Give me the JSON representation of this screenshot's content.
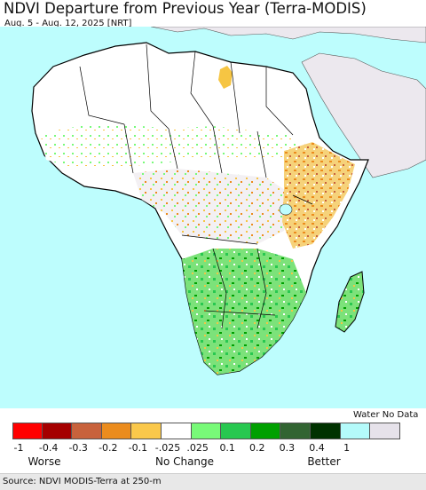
{
  "header": {
    "title": "NDVI Departure from Previous Year (Terra-MODIS)",
    "subtitle": "Aug. 5 - Aug. 12, 2025 [NRT]"
  },
  "map": {
    "colors": {
      "water": "#bdfdfd",
      "land_no_change": "#ffffff",
      "outside_region": "#ece8ee",
      "border": "#000000",
      "no_data": "#e0dce3",
      "sahara_anomaly": "#f6c543"
    }
  },
  "legend": {
    "water_no_data_label": "Water No Data",
    "swatches": [
      {
        "name": "minus-1-to-minus-0.4",
        "color": "#ff0000"
      },
      {
        "name": "minus-0.4-to-minus-0.3",
        "color": "#a50000"
      },
      {
        "name": "minus-0.3-to-minus-0.2",
        "color": "#c8623c"
      },
      {
        "name": "minus-0.2-to-minus-0.1",
        "color": "#eb8c1e"
      },
      {
        "name": "minus-0.1-to-minus-0.025",
        "color": "#fac84b"
      },
      {
        "name": "no-change",
        "color": "#ffffff"
      },
      {
        "name": "0.025-to-0.1",
        "color": "#78fa78"
      },
      {
        "name": "0.1-to-0.2",
        "color": "#28c850"
      },
      {
        "name": "0.2-to-0.3",
        "color": "#00a000"
      },
      {
        "name": "0.3-to-0.4",
        "color": "#326432"
      },
      {
        "name": "0.4-to-1",
        "color": "#003200"
      },
      {
        "name": "water",
        "color": "#b4fafa"
      },
      {
        "name": "no-data",
        "color": "#e6e2ea"
      }
    ],
    "ticks": [
      "-1",
      "-0.4",
      "-0.3",
      "-0.2",
      "-0.1",
      "-.025",
      ".025",
      "0.1",
      "0.2",
      "0.3",
      "0.4",
      "1"
    ],
    "categories": {
      "worse": "Worse",
      "no_change": "No Change",
      "better": "Better"
    }
  },
  "footer": {
    "source": "Source: NDVI MODIS-Terra at 250-m"
  }
}
